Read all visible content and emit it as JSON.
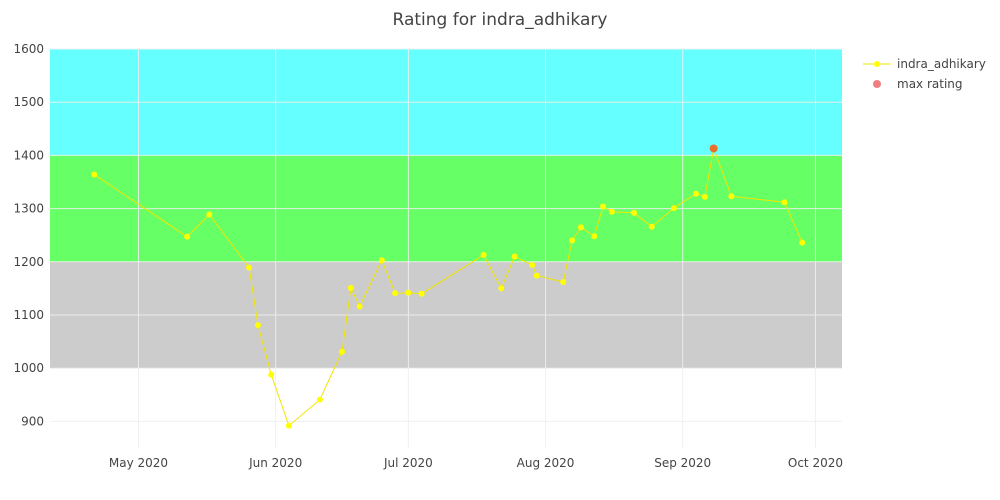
{
  "chart_data": {
    "type": "line",
    "title": "Rating for indra_adhikary",
    "xlabel": "",
    "ylabel": "",
    "x_range": [
      "2020-04-11",
      "2020-10-07"
    ],
    "ylim": [
      850,
      1600
    ],
    "grid": true,
    "legend_position": "top-right",
    "x_ticks": [
      {
        "date": "2020-05-01",
        "label": "May 2020"
      },
      {
        "date": "2020-06-01",
        "label": "Jun 2020"
      },
      {
        "date": "2020-07-01",
        "label": "Jul 2020"
      },
      {
        "date": "2020-08-01",
        "label": "Aug 2020"
      },
      {
        "date": "2020-09-01",
        "label": "Sep 2020"
      },
      {
        "date": "2020-10-01",
        "label": "Oct 2020"
      }
    ],
    "y_ticks": [
      900,
      1000,
      1100,
      1200,
      1300,
      1400,
      1500,
      1600
    ],
    "bands": [
      {
        "from": 1000,
        "to": 1200,
        "color": "#cccccc"
      },
      {
        "from": 1200,
        "to": 1400,
        "color": "#66ff66"
      },
      {
        "from": 1400,
        "to": 1600,
        "color": "#66ffff"
      }
    ],
    "series": [
      {
        "name": "indra_adhikary",
        "color": "#ffff00",
        "line_color": "#f2e600",
        "points": [
          {
            "x": "2020-04-21",
            "y": 1364
          },
          {
            "x": "2020-05-12",
            "y": 1247
          },
          {
            "x": "2020-05-17",
            "y": 1289
          },
          {
            "x": "2020-05-26",
            "y": 1189
          },
          {
            "x": "2020-05-28",
            "y": 1081
          },
          {
            "x": "2020-05-31",
            "y": 988
          },
          {
            "x": "2020-06-04",
            "y": 892
          },
          {
            "x": "2020-06-11",
            "y": 941
          },
          {
            "x": "2020-06-16",
            "y": 1031
          },
          {
            "x": "2020-06-18",
            "y": 1151
          },
          {
            "x": "2020-06-20",
            "y": 1116
          },
          {
            "x": "2020-06-25",
            "y": 1203
          },
          {
            "x": "2020-06-28",
            "y": 1141
          },
          {
            "x": "2020-07-01",
            "y": 1142
          },
          {
            "x": "2020-07-04",
            "y": 1140
          },
          {
            "x": "2020-07-18",
            "y": 1213
          },
          {
            "x": "2020-07-22",
            "y": 1150
          },
          {
            "x": "2020-07-25",
            "y": 1210
          },
          {
            "x": "2020-07-29",
            "y": 1194
          },
          {
            "x": "2020-07-30",
            "y": 1174
          },
          {
            "x": "2020-08-05",
            "y": 1162
          },
          {
            "x": "2020-08-07",
            "y": 1240
          },
          {
            "x": "2020-08-09",
            "y": 1265
          },
          {
            "x": "2020-08-12",
            "y": 1248
          },
          {
            "x": "2020-08-14",
            "y": 1304
          },
          {
            "x": "2020-08-16",
            "y": 1294
          },
          {
            "x": "2020-08-21",
            "y": 1292
          },
          {
            "x": "2020-08-25",
            "y": 1266
          },
          {
            "x": "2020-08-30",
            "y": 1301
          },
          {
            "x": "2020-09-04",
            "y": 1328
          },
          {
            "x": "2020-09-06",
            "y": 1322
          },
          {
            "x": "2020-09-08",
            "y": 1413
          },
          {
            "x": "2020-09-12",
            "y": 1323
          },
          {
            "x": "2020-09-24",
            "y": 1312
          },
          {
            "x": "2020-09-28",
            "y": 1236
          }
        ]
      },
      {
        "name": "max rating",
        "color": "#f08080",
        "point_color": "#e8702a",
        "points": [
          {
            "x": "2020-09-08",
            "y": 1413
          }
        ]
      }
    ]
  }
}
